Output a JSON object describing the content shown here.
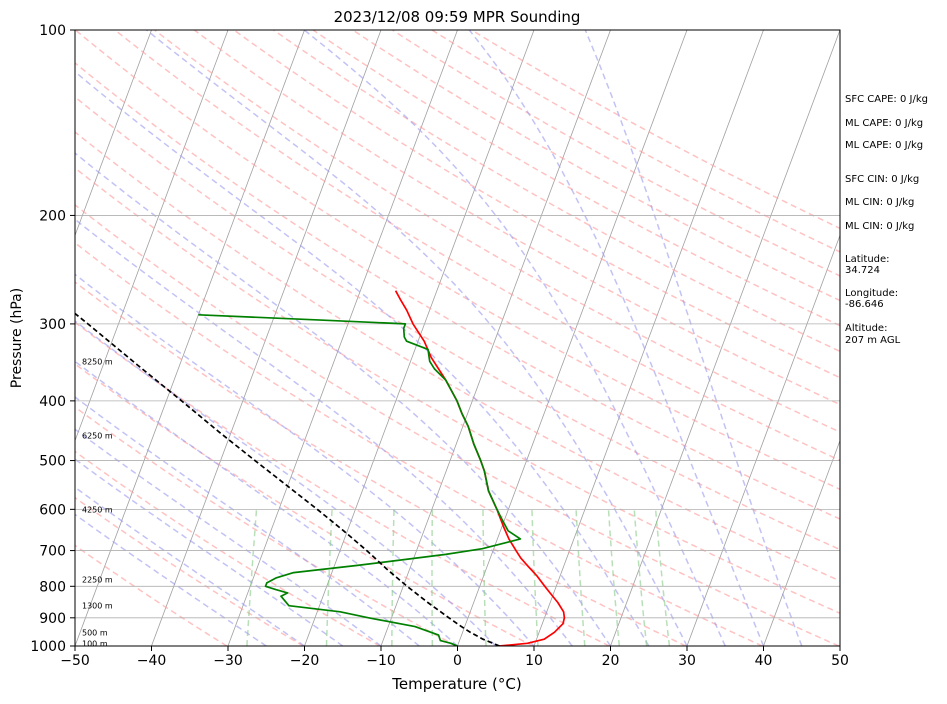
{
  "chart_data": {
    "type": "line",
    "title": "2023/12/08 09:59 MPR Sounding",
    "xlabel": "Temperature (°C)",
    "ylabel": "Pressure (hPa)",
    "xlim": [
      -50,
      50
    ],
    "ylim": [
      1000,
      100
    ],
    "yscale": "log",
    "x_ticks": [
      -50,
      -40,
      -30,
      -20,
      -10,
      0,
      10,
      20,
      30,
      40,
      50
    ],
    "x_tick_labels": [
      "−50",
      "−40",
      "−30",
      "−20",
      "−10",
      "0",
      "10",
      "20",
      "30",
      "40",
      "50"
    ],
    "y_ticks": [
      1000,
      900,
      800,
      700,
      600,
      500,
      400,
      300,
      200,
      100
    ],
    "y_tick_labels": [
      "1000",
      "900",
      "800",
      "700",
      "600",
      "500",
      "400",
      "300",
      "200",
      "100"
    ],
    "grid": true,
    "skew": "skew-T log-P",
    "colors": {
      "temperature": "#ff0000",
      "dewpoint": "#008000",
      "parcel": "#000000",
      "isotherm": "#a0a0a0",
      "dry_adiabat": "#ff9999",
      "moist_adiabat": "#9999ee",
      "mixing_ratio": "#88cc88"
    },
    "series": [
      {
        "key": "temperature",
        "points": [
          [
            1000,
            5.5
          ],
          [
            990,
            9.0
          ],
          [
            975,
            11.0
          ],
          [
            950,
            12.0
          ],
          [
            920,
            12.7
          ],
          [
            900,
            12.6
          ],
          [
            880,
            12.2
          ],
          [
            850,
            11.0
          ],
          [
            820,
            9.5
          ],
          [
            800,
            8.5
          ],
          [
            770,
            7.0
          ],
          [
            740,
            5.2
          ],
          [
            720,
            4.0
          ],
          [
            700,
            3.0
          ],
          [
            670,
            1.5
          ],
          [
            640,
            0.2
          ],
          [
            600,
            -1.5
          ],
          [
            560,
            -3.5
          ],
          [
            520,
            -5.0
          ],
          [
            500,
            -6.0
          ],
          [
            470,
            -7.7
          ],
          [
            440,
            -9.3
          ],
          [
            420,
            -10.7
          ],
          [
            400,
            -12.0
          ],
          [
            370,
            -14.5
          ],
          [
            340,
            -17.5
          ],
          [
            320,
            -19.2
          ],
          [
            300,
            -21.5
          ],
          [
            285,
            -23.0
          ],
          [
            275,
            -24.2
          ],
          [
            265,
            -25.4
          ]
        ]
      },
      {
        "key": "dewpoint",
        "points": [
          [
            1000,
            0.0
          ],
          [
            990,
            -1.0
          ],
          [
            980,
            -2.5
          ],
          [
            960,
            -3.0
          ],
          [
            930,
            -6.5
          ],
          [
            900,
            -13.0
          ],
          [
            880,
            -17.0
          ],
          [
            860,
            -24.0
          ],
          [
            830,
            -25.5
          ],
          [
            820,
            -24.8
          ],
          [
            810,
            -26.5
          ],
          [
            800,
            -28.0
          ],
          [
            790,
            -28.0
          ],
          [
            775,
            -27.0
          ],
          [
            760,
            -25.0
          ],
          [
            740,
            -17.0
          ],
          [
            710,
            -6.0
          ],
          [
            695,
            -1.5
          ],
          [
            670,
            3.0
          ],
          [
            650,
            1.0
          ],
          [
            620,
            -0.5
          ],
          [
            600,
            -1.5
          ],
          [
            560,
            -3.5
          ],
          [
            520,
            -5.0
          ],
          [
            500,
            -6.0
          ],
          [
            470,
            -7.7
          ],
          [
            440,
            -9.3
          ],
          [
            420,
            -10.7
          ],
          [
            400,
            -12.0
          ],
          [
            370,
            -14.5
          ],
          [
            355,
            -16.5
          ],
          [
            345,
            -17.5
          ],
          [
            330,
            -18.3
          ],
          [
            320,
            -21.5
          ],
          [
            315,
            -22.0
          ],
          [
            305,
            -22.5
          ],
          [
            300,
            -22.5
          ],
          [
            296,
            -33.0
          ],
          [
            290,
            -50.0
          ]
        ]
      },
      {
        "key": "parcel",
        "points": [
          [
            1000,
            5.5
          ],
          [
            975,
            3.0
          ],
          [
            950,
            1.0
          ],
          [
            925,
            -0.8
          ],
          [
            900,
            -2.5
          ],
          [
            850,
            -6.0
          ],
          [
            800,
            -9.5
          ],
          [
            750,
            -13.0
          ],
          [
            700,
            -16.5
          ],
          [
            650,
            -20.5
          ],
          [
            600,
            -25.0
          ],
          [
            550,
            -30.0
          ],
          [
            500,
            -35.5
          ],
          [
            450,
            -41.5
          ],
          [
            400,
            -48.0
          ],
          [
            350,
            -55.5
          ],
          [
            300,
            -64.0
          ],
          [
            265,
            -71.0
          ]
        ]
      }
    ],
    "height_labels": [
      {
        "pressure": 345,
        "text": "8250 m"
      },
      {
        "pressure": 455,
        "text": "6250 m"
      },
      {
        "pressure": 600,
        "text": "4250 m"
      },
      {
        "pressure": 780,
        "text": "2250 m"
      },
      {
        "pressure": 860,
        "text": "1300 m"
      },
      {
        "pressure": 950,
        "text": "500 m"
      },
      {
        "pressure": 990,
        "text": "100 m"
      }
    ],
    "info_lines": [
      "SFC CAPE: 0 J/kg",
      "ML CAPE: 0 J/kg",
      "ML CAPE: 0 J/kg",
      "SFC CIN: 0 J/kg",
      "ML CIN: 0 J/kg",
      "ML CIN: 0 J/kg",
      "Latitude:",
      "34.724",
      "Longitude:",
      "-86.646",
      "Altitude:",
      "207 m AGL"
    ]
  }
}
